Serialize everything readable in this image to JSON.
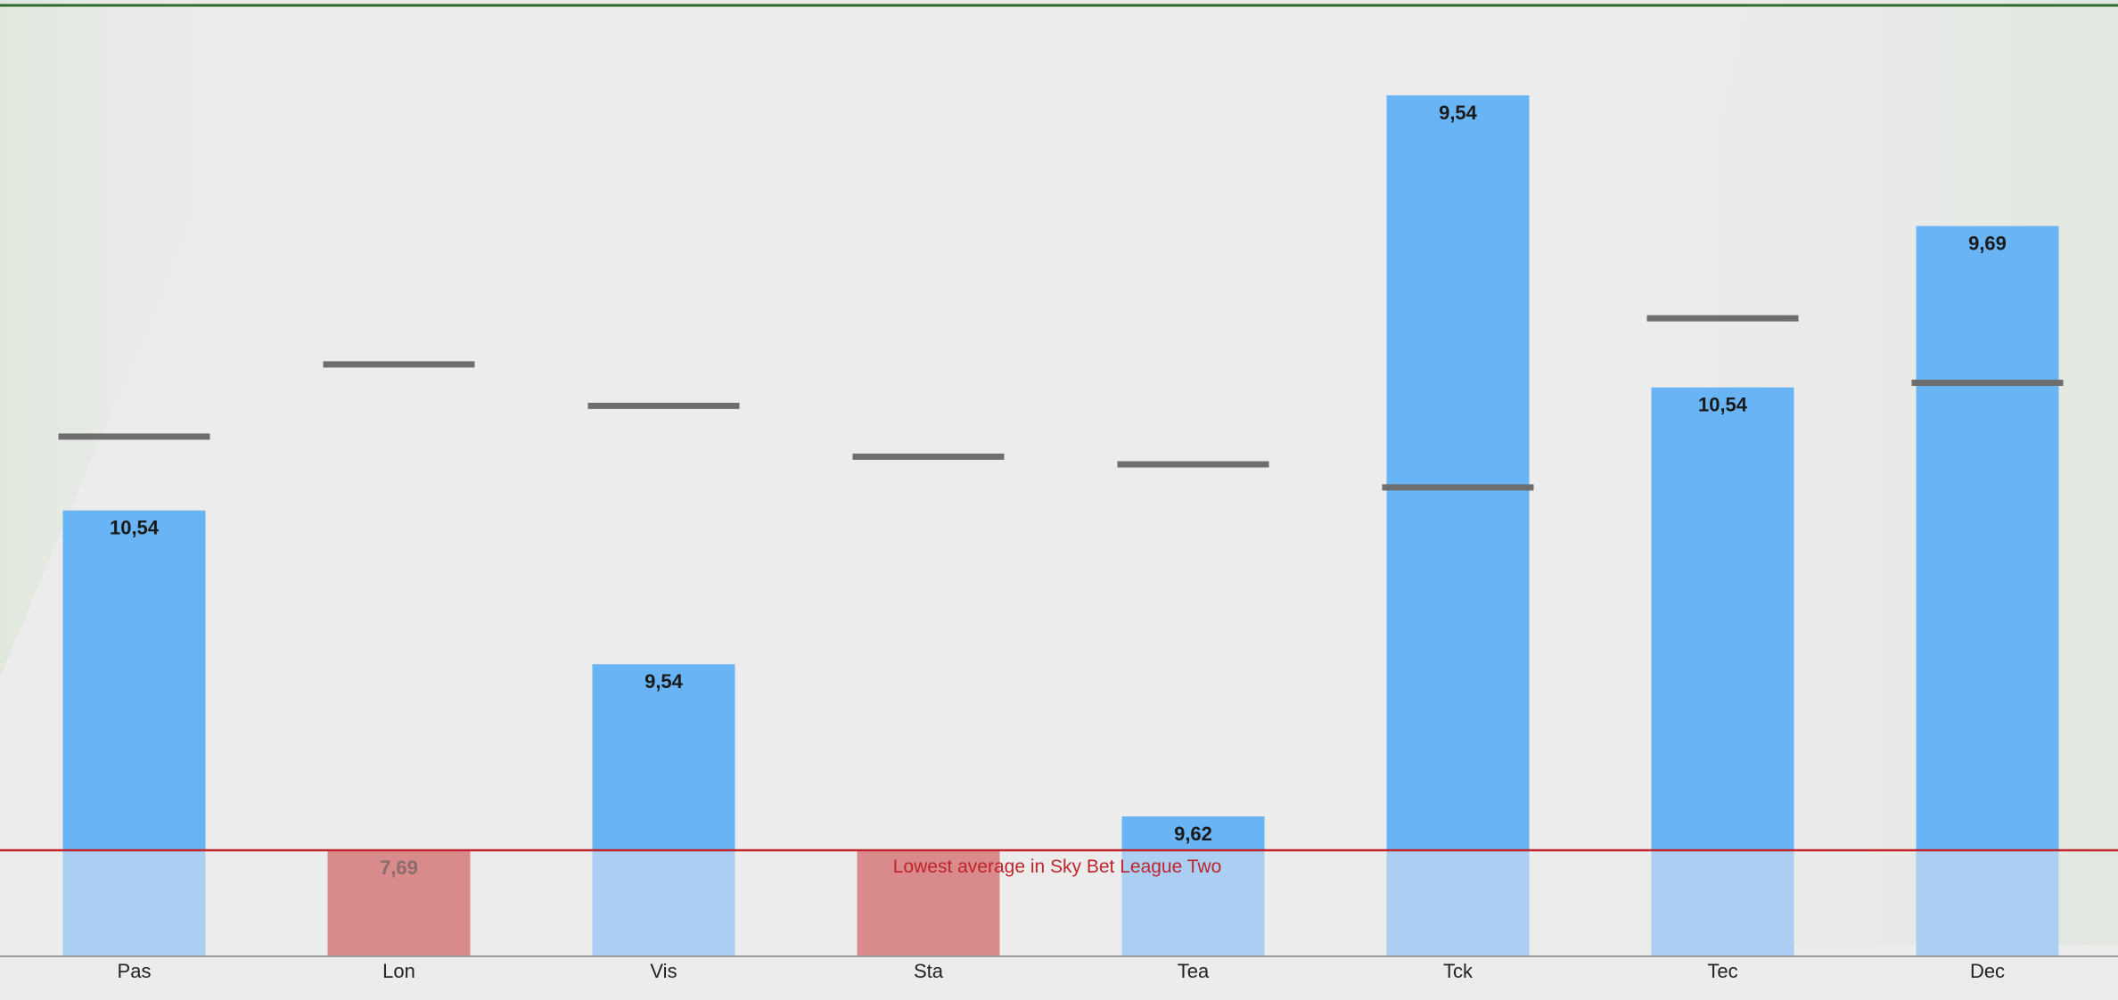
{
  "chart_data": {
    "type": "bar",
    "categories": [
      "Pas",
      "Lon",
      "Vis",
      "Sta",
      "Tea",
      "Tck",
      "Tec",
      "Dec"
    ],
    "values": [
      10.54,
      7.69,
      9.54,
      7.7,
      9.62,
      9.54,
      10.54,
      9.69
    ],
    "value_labels": [
      "10,54",
      "7,69",
      "9,54",
      "",
      "9,62",
      "9,54",
      "10,54",
      "9,69"
    ],
    "bar_tops": [
      9.9,
      7.69,
      8.9,
      7.69,
      7.91,
      12.6,
      10.7,
      11.75
    ],
    "markers": [
      10.38,
      10.85,
      10.58,
      10.25,
      10.2,
      10.05,
      11.15,
      10.73
    ],
    "reference_line": {
      "value": 7.69,
      "label": "Lowest average in Sky Bet League Two"
    },
    "ylim": [
      7.0,
      13.22
    ],
    "grid": false,
    "title": "",
    "xlabel": "",
    "ylabel": "",
    "colors": {
      "bar": "#69b4f4",
      "bar_below": "#aacff2",
      "bar_negative": "#d98a8a",
      "marker": "#6e6e6e",
      "reference": "#c0242c",
      "top_line": "#2e6b2e",
      "axis": "#9a9a9a"
    }
  }
}
